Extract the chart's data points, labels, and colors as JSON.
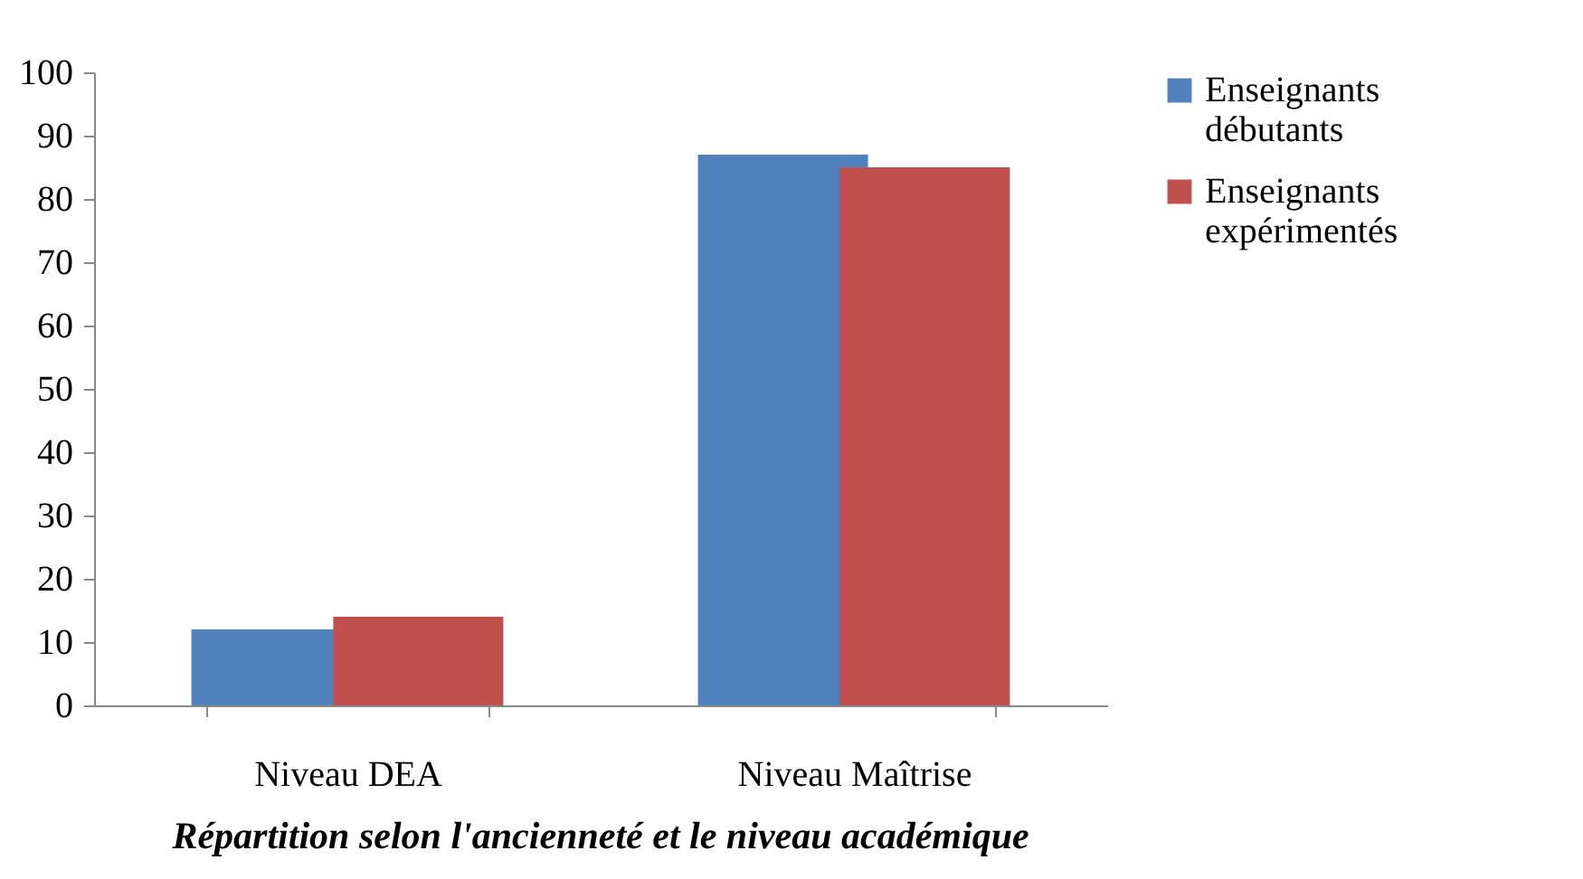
{
  "chart_data": {
    "type": "bar",
    "title": "Répartition selon l'ancienneté et le niveau académique",
    "categories": [
      "Niveau DEA",
      "Niveau Maîtrise"
    ],
    "series": [
      {
        "name": "Enseignants débutants",
        "color": "#4f81bd",
        "values": [
          12,
          87
        ]
      },
      {
        "name": "Enseignants expérimentés",
        "color": "#c0504d",
        "values": [
          14,
          85
        ]
      }
    ],
    "ylim": [
      0,
      100
    ],
    "yticks": [
      0,
      10,
      20,
      30,
      40,
      50,
      60,
      70,
      80,
      90,
      100
    ],
    "grid": false,
    "legend": "right"
  }
}
